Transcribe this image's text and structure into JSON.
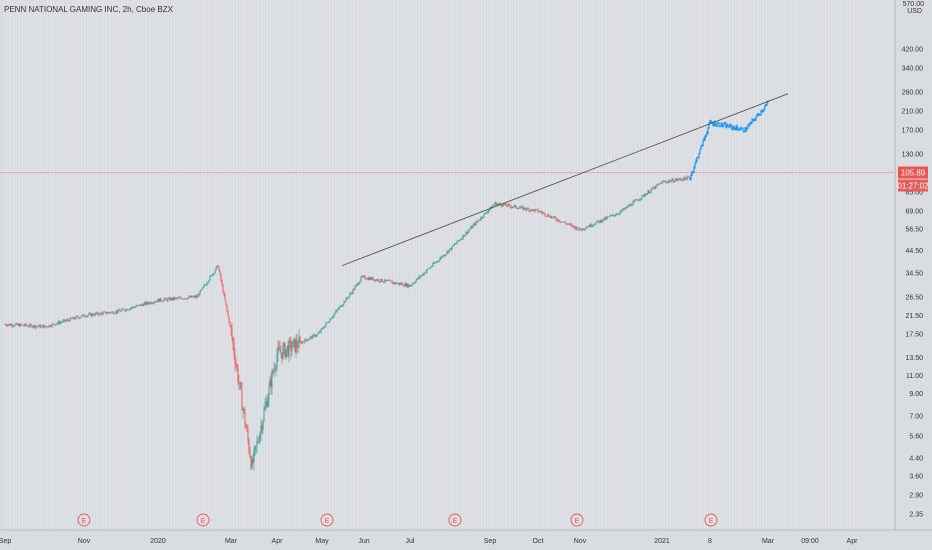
{
  "header": {
    "title": "PENN NATIONAL GAMING INC, 2h, Cboe BZX"
  },
  "price_scale": {
    "currency": "USD",
    "top_label": "570.00",
    "ticks": [
      "420.00",
      "340.00",
      "260.00",
      "210.00",
      "170.00",
      "130.00",
      "85.00",
      "69.00",
      "56.50",
      "44.50",
      "34.50",
      "26.50",
      "21.50",
      "17.50",
      "13.50",
      "11.00",
      "9.00",
      "7.00",
      "5.60",
      "4.40",
      "3.60",
      "2.90",
      "2.35"
    ],
    "current_price": "105.89",
    "countdown": "01:27:02"
  },
  "time_axis": {
    "labels": [
      "Sep",
      "Nov",
      "2020",
      "Mar",
      "Apr",
      "May",
      "Jun",
      "Jul",
      "Sep",
      "Oct",
      "Nov",
      "2021",
      "8",
      "Mar",
      "09:00",
      "Apr"
    ]
  },
  "earnings_markers": [
    "E",
    "E",
    "E",
    "E",
    "E",
    "E"
  ],
  "colors": {
    "background": "#d9dce1",
    "up": "#26a69a",
    "down": "#ef5350",
    "forecast": "#2196f3",
    "trendline": "#555555",
    "price_line": "#ef5350",
    "price_label_bg": "#ef5350",
    "countdown_bg": "#e65b5b"
  },
  "chart_data": {
    "type": "candlestick",
    "title": "PENN NATIONAL GAMING INC, 2h, Cboe BZX",
    "y_scale": "log",
    "ylim": [
      2.2,
      580
    ],
    "x": [
      "2019-09",
      "2019-10",
      "2019-11",
      "2019-12",
      "2020-01",
      "2020-02",
      "2020-02-20",
      "2020-03",
      "2020-03-18",
      "2020-04",
      "2020-05",
      "2020-05-25",
      "2020-06",
      "2020-07",
      "2020-08",
      "2020-09",
      "2020-10",
      "2020-11",
      "2020-12",
      "2021-01",
      "2021-01-25",
      "2021-02",
      "2021-02-15",
      "2021-03"
    ],
    "close": [
      19.5,
      19.0,
      21.5,
      22.5,
      25.5,
      26.5,
      37.5,
      18.0,
      4.0,
      14.0,
      17.5,
      28.0,
      33.0,
      30.0,
      45.0,
      75.0,
      69.0,
      56.0,
      68.0,
      95.0,
      100.0,
      185.0,
      170.0,
      230.0
    ],
    "forecast_segment": {
      "from": "2021-01-25",
      "to": "2021-03"
    },
    "trendline": {
      "start": [
        "2020-05-25",
        37.5
      ],
      "end": [
        "2021-03",
        255
      ]
    },
    "current_price": 105.89
  }
}
